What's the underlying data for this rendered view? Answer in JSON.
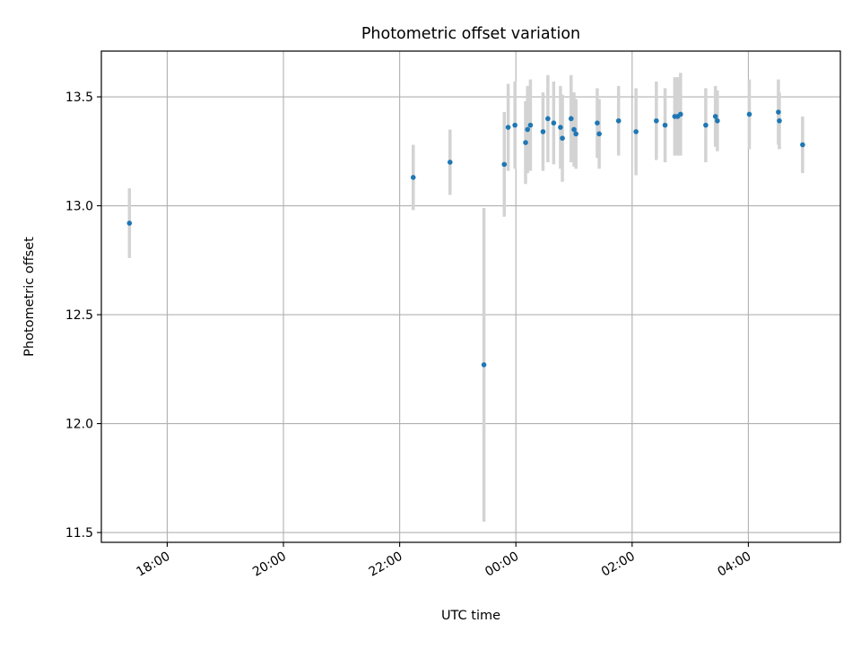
{
  "chart_data": {
    "type": "scatter",
    "title": "Photometric offset variation",
    "xlabel": "UTC time",
    "ylabel": "Photometric offset",
    "grid": true,
    "x_axis_kind": "time",
    "x_ticks": [
      {
        "time": "18:00",
        "label": "18:00"
      },
      {
        "time": "20:00",
        "label": "20:00"
      },
      {
        "time": "22:00",
        "label": "22:00"
      },
      {
        "time": "00:00",
        "label": "00:00"
      },
      {
        "time": "02:00",
        "label": "02:00"
      },
      {
        "time": "04:00",
        "label": "04:00"
      }
    ],
    "xlim": [
      "16:52",
      "05:35"
    ],
    "y_ticks": [
      11.5,
      12.0,
      12.5,
      13.0,
      13.5
    ],
    "ylim": [
      11.455,
      13.71
    ],
    "colors": {
      "point": "#1f77b4",
      "errorbar": "#d3d3d3",
      "grid": "#b0b0b0"
    },
    "points": [
      {
        "t": "17:21",
        "y": 12.92,
        "err": 0.16
      },
      {
        "t": "22:14",
        "y": 13.13,
        "err": 0.15
      },
      {
        "t": "22:52",
        "y": 13.2,
        "err": 0.15
      },
      {
        "t": "23:27",
        "y": 12.27,
        "err": 0.72
      },
      {
        "t": "23:48",
        "y": 13.19,
        "err": 0.24
      },
      {
        "t": "23:52",
        "y": 13.36,
        "err": 0.2
      },
      {
        "t": "23:59",
        "y": 13.37,
        "err": 0.2
      },
      {
        "t": "00:10",
        "y": 13.29,
        "err": 0.19
      },
      {
        "t": "00:12",
        "y": 13.35,
        "err": 0.2
      },
      {
        "t": "00:15",
        "y": 13.37,
        "err": 0.21
      },
      {
        "t": "00:28",
        "y": 13.34,
        "err": 0.18
      },
      {
        "t": "00:33",
        "y": 13.4,
        "err": 0.2
      },
      {
        "t": "00:39",
        "y": 13.38,
        "err": 0.19
      },
      {
        "t": "00:46",
        "y": 13.36,
        "err": 0.19
      },
      {
        "t": "00:48",
        "y": 13.31,
        "err": 0.2
      },
      {
        "t": "00:57",
        "y": 13.4,
        "err": 0.2
      },
      {
        "t": "01:00",
        "y": 13.35,
        "err": 0.17
      },
      {
        "t": "01:02",
        "y": 13.33,
        "err": 0.16
      },
      {
        "t": "01:24",
        "y": 13.38,
        "err": 0.16
      },
      {
        "t": "01:26",
        "y": 13.33,
        "err": 0.16
      },
      {
        "t": "01:46",
        "y": 13.39,
        "err": 0.16
      },
      {
        "t": "02:04",
        "y": 13.34,
        "err": 0.2
      },
      {
        "t": "02:25",
        "y": 13.39,
        "err": 0.18
      },
      {
        "t": "02:34",
        "y": 13.37,
        "err": 0.17
      },
      {
        "t": "02:44",
        "y": 13.41,
        "err": 0.18
      },
      {
        "t": "02:47",
        "y": 13.41,
        "err": 0.18
      },
      {
        "t": "02:50",
        "y": 13.42,
        "err": 0.19
      },
      {
        "t": "03:16",
        "y": 13.37,
        "err": 0.17
      },
      {
        "t": "03:26",
        "y": 13.41,
        "err": 0.14
      },
      {
        "t": "03:28",
        "y": 13.39,
        "err": 0.14
      },
      {
        "t": "04:01",
        "y": 13.42,
        "err": 0.16
      },
      {
        "t": "04:31",
        "y": 13.43,
        "err": 0.15
      },
      {
        "t": "04:32",
        "y": 13.39,
        "err": 0.13
      },
      {
        "t": "04:56",
        "y": 13.28,
        "err": 0.13
      }
    ]
  }
}
